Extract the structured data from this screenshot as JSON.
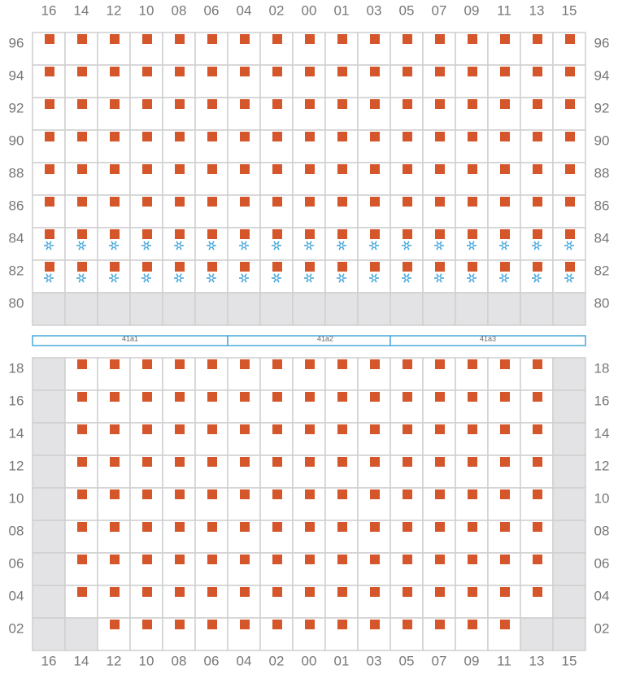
{
  "deck": {
    "columns": [
      "16",
      "14",
      "12",
      "10",
      "08",
      "06",
      "04",
      "02",
      "00",
      "01",
      "03",
      "05",
      "07",
      "09",
      "11",
      "13",
      "15"
    ],
    "rows": [
      "96",
      "94",
      "92",
      "90",
      "88",
      "86",
      "84",
      "82",
      "80"
    ]
  },
  "hatch_covers": [
    "41a1",
    "41a2",
    "41a3"
  ],
  "hold": {
    "rows": [
      "18",
      "16",
      "14",
      "12",
      "10",
      "08",
      "06",
      "04",
      "02"
    ]
  }
}
